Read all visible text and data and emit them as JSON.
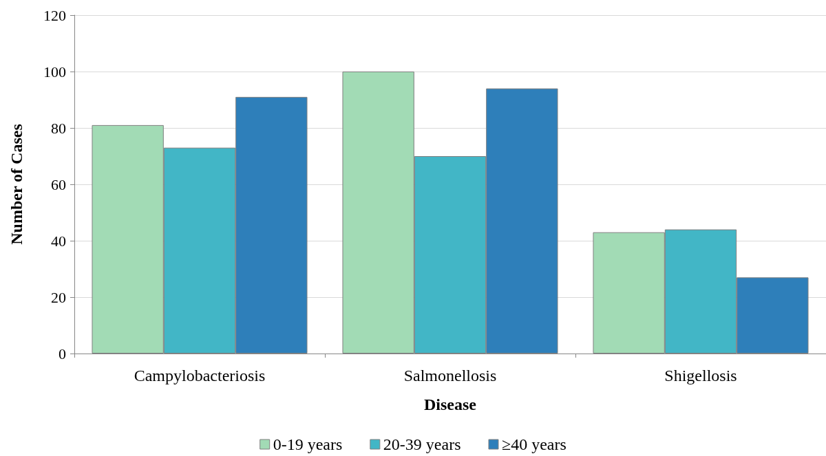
{
  "chart_data": {
    "type": "bar",
    "xlabel": "Disease",
    "ylabel": "Number of Cases",
    "categories": [
      "Campylobacteriosis",
      "Salmonellosis",
      "Shigellosis"
    ],
    "series": [
      {
        "name": "0-19 years",
        "color": "#a2dbb5",
        "values": [
          81,
          100,
          43
        ]
      },
      {
        "name": "20-39 years",
        "color": "#42b6c6",
        "values": [
          73,
          70,
          44
        ]
      },
      {
        "name": "≥40 years",
        "color": "#2e7fba",
        "values": [
          91,
          94,
          27
        ]
      }
    ],
    "ylim": [
      0,
      120
    ],
    "yticks": [
      0,
      20,
      40,
      60,
      80,
      100,
      120
    ],
    "grid": "y",
    "legend": "bottom"
  }
}
